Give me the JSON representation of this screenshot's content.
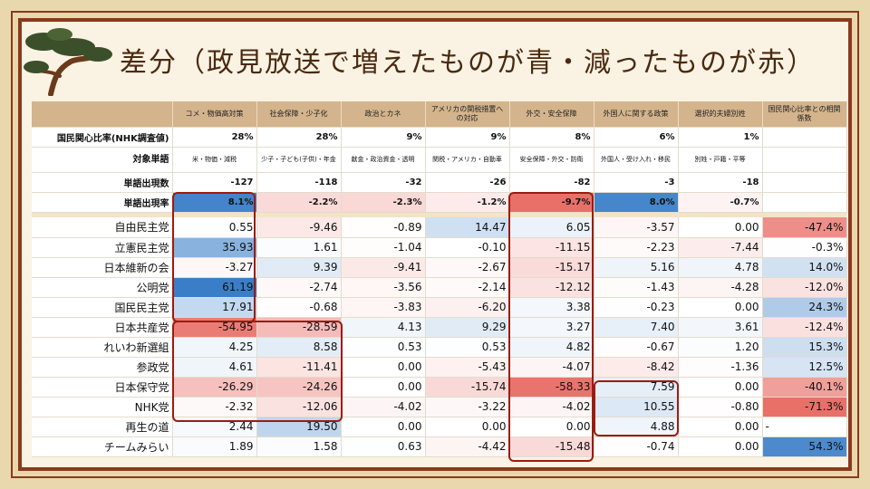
{
  "title": "差分（政見放送で増えたものが青・減ったものが赤）",
  "colors": {
    "frame": "#8a3a1c",
    "header": "#d4b48c",
    "highlight": "#9b1c10"
  },
  "columns": [
    "コメ・物価高対策",
    "社会保障・少子化",
    "政治とカネ",
    "アメリカの関税措置への対応",
    "外交・安全保障",
    "外国人に関する政策",
    "選択的夫婦別姓",
    "国民関心比率との相関係数"
  ],
  "meta_rows": [
    {
      "label": "国民関心比率(NHK調査値)",
      "values": [
        "28%",
        "28%",
        "9%",
        "9%",
        "8%",
        "6%",
        "1%",
        ""
      ]
    },
    {
      "label": "対象単語",
      "values": [
        "米・物価・減税",
        "少子・子ども(子供)・年金",
        "献金・政治資金・透明",
        "関税・アメリカ・自動車",
        "安全保障・外交・防衛",
        "外国人・受け入れ・移民",
        "別姓・戸籍・平等",
        ""
      ]
    },
    {
      "label": "単語出現数",
      "values": [
        "-127",
        "-118",
        "-32",
        "-26",
        "-82",
        "-3",
        "-18",
        ""
      ]
    },
    {
      "label": "単語出現率",
      "values": [
        "8.1%",
        "-2.2%",
        "-2.3%",
        "-1.2%",
        "-9.7%",
        "8.0%",
        "-0.7%",
        ""
      ]
    }
  ],
  "parties": [
    {
      "name": "自由民主党",
      "values": [
        "0.55",
        "-9.46",
        "-0.89",
        "14.47",
        "6.05",
        "-3.57",
        "0.00",
        "-47.4%"
      ]
    },
    {
      "name": "立憲民主党",
      "values": [
        "35.93",
        "1.61",
        "-1.04",
        "-0.10",
        "-11.15",
        "-2.23",
        "-7.44",
        "-0.3%"
      ]
    },
    {
      "name": "日本維新の会",
      "values": [
        "-3.27",
        "9.39",
        "-9.41",
        "-2.67",
        "-15.17",
        "5.16",
        "4.78",
        "14.0%"
      ]
    },
    {
      "name": "公明党",
      "values": [
        "61.19",
        "-2.74",
        "-3.56",
        "-2.14",
        "-12.12",
        "-1.43",
        "-4.28",
        "-12.0%"
      ]
    },
    {
      "name": "国民民主党",
      "values": [
        "17.91",
        "-0.68",
        "-3.83",
        "-6.20",
        "3.38",
        "-0.23",
        "0.00",
        "24.3%"
      ]
    },
    {
      "name": "日本共産党",
      "values": [
        "-54.95",
        "-28.59",
        "4.13",
        "9.29",
        "3.27",
        "7.40",
        "3.61",
        "-12.4%"
      ]
    },
    {
      "name": "れいわ新選組",
      "values": [
        "4.25",
        "8.58",
        "0.53",
        "0.53",
        "4.82",
        "-0.67",
        "1.20",
        "15.3%"
      ]
    },
    {
      "name": "参政党",
      "values": [
        "4.61",
        "-11.41",
        "0.00",
        "-5.43",
        "-4.07",
        "-8.42",
        "-1.36",
        "12.5%"
      ]
    },
    {
      "name": "日本保守党",
      "values": [
        "-26.29",
        "-24.26",
        "0.00",
        "-15.74",
        "-58.33",
        "7.59",
        "0.00",
        "-40.1%"
      ]
    },
    {
      "name": "NHK党",
      "values": [
        "-2.32",
        "-12.06",
        "-4.02",
        "-3.22",
        "-4.02",
        "10.55",
        "-0.80",
        "-71.3%"
      ]
    },
    {
      "name": "再生の道",
      "values": [
        "2.44",
        "19.50",
        "0.00",
        "0.00",
        "0.00",
        "4.88",
        "0.00",
        "-"
      ]
    },
    {
      "name": "チームみらい",
      "values": [
        "1.89",
        "1.58",
        "0.63",
        "-4.42",
        "-15.48",
        "-0.74",
        "0.00",
        "54.3%"
      ]
    }
  ]
}
